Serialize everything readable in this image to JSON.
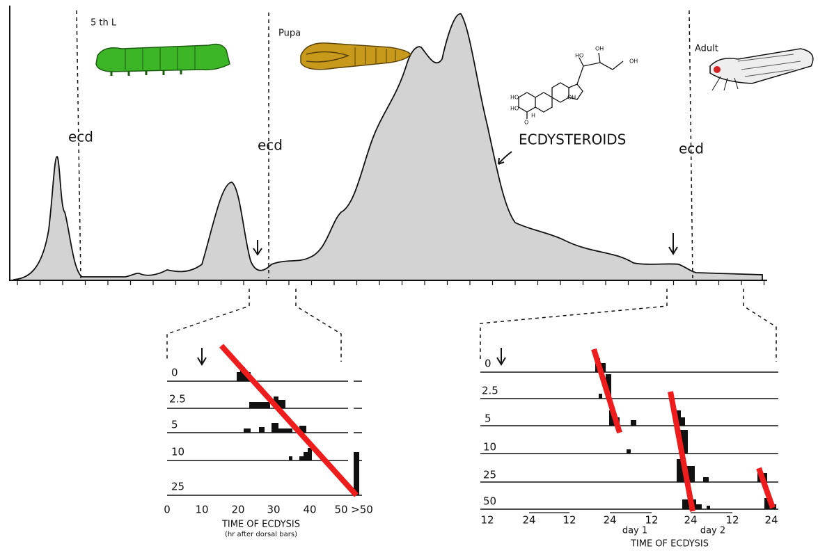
{
  "stages": [
    "5 th L",
    "Pupa",
    "Adult"
  ],
  "ecdysis_labels": [
    "ecd",
    "ecd",
    "ecd"
  ],
  "hormone_label": "ECDYSTEROIDS",
  "structure_labels": [
    "HO",
    "OH",
    "OH",
    "HO",
    "HO",
    "OH",
    "H",
    "O"
  ],
  "left_panel": {
    "row_labels": [
      "0",
      "2.5",
      "5",
      "10",
      "25"
    ],
    "x_ticks": [
      "0",
      "10",
      "20",
      "30",
      "40",
      "50",
      ">50"
    ],
    "x_title": "TIME OF ECDYSIS",
    "x_subtitle": "(hr after dorsal bars)"
  },
  "right_panel": {
    "row_labels": [
      "0",
      "2.5",
      "5",
      "10",
      "25",
      "50"
    ],
    "x_ticks": [
      "12",
      "24",
      "12",
      "24",
      "12",
      "24",
      "12",
      "24"
    ],
    "day_labels": [
      "day 1",
      "day 2"
    ],
    "x_title": "TIME OF ECDYSIS"
  }
}
